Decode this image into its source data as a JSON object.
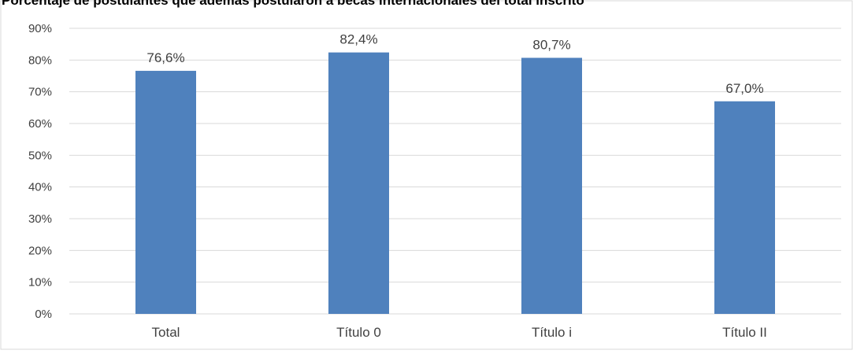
{
  "chart_data": {
    "type": "bar",
    "title": "Porcentaje de postulantes que además postularon a becas internacionales del total inscrito",
    "categories": [
      "Total",
      "Título 0",
      "Título i",
      "Título II"
    ],
    "values": [
      76.6,
      82.4,
      80.7,
      67.0
    ],
    "data_labels": [
      "76,6%",
      "82,4%",
      "80,7%",
      "67,0%"
    ],
    "y_ticks": [
      "0%",
      "10%",
      "20%",
      "30%",
      "40%",
      "50%",
      "60%",
      "70%",
      "80%",
      "90%"
    ],
    "ylim": [
      0,
      90
    ],
    "grid": true,
    "legend": "none",
    "xlabel": "",
    "ylabel": "",
    "colors": {
      "bar": "#4F81BD",
      "grid": "#D9D9D9",
      "text": "#404040"
    }
  }
}
